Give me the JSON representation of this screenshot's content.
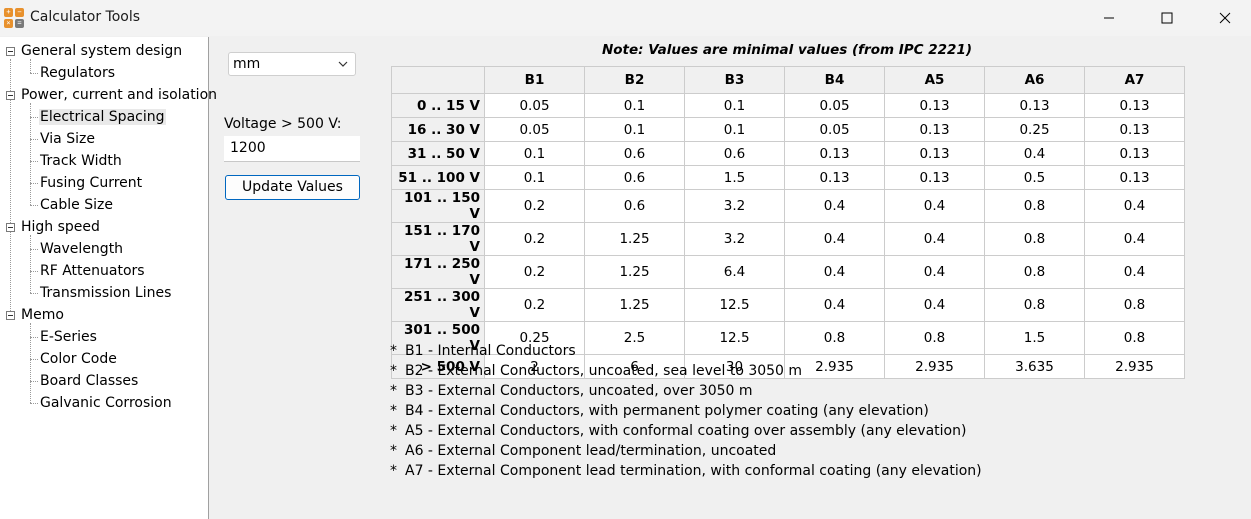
{
  "window": {
    "title": "Calculator Tools",
    "icon": "calculator-icon"
  },
  "sidebar": {
    "groups": [
      {
        "label": "General system design",
        "items": [
          "Regulators"
        ]
      },
      {
        "label": "Power, current and isolation",
        "items": [
          "Electrical Spacing",
          "Via Size",
          "Track Width",
          "Fusing Current",
          "Cable Size"
        ]
      },
      {
        "label": "High speed",
        "items": [
          "Wavelength",
          "RF Attenuators",
          "Transmission Lines"
        ]
      },
      {
        "label": "Memo",
        "items": [
          "E-Series",
          "Color Code",
          "Board Classes",
          "Galvanic Corrosion"
        ]
      }
    ],
    "selected": "Electrical Spacing"
  },
  "controls": {
    "unit_value": "mm",
    "voltage_label": "Voltage > 500 V:",
    "voltage_value": "1200",
    "update_label": "Update Values"
  },
  "table": {
    "note": "Note: Values are minimal values (from IPC 2221)",
    "columns": [
      "B1",
      "B2",
      "B3",
      "B4",
      "A5",
      "A6",
      "A7"
    ],
    "rows": [
      {
        "label": "0 .. 15 V",
        "values": [
          "0.05",
          "0.1",
          "0.1",
          "0.05",
          "0.13",
          "0.13",
          "0.13"
        ]
      },
      {
        "label": "16 .. 30 V",
        "values": [
          "0.05",
          "0.1",
          "0.1",
          "0.05",
          "0.13",
          "0.25",
          "0.13"
        ]
      },
      {
        "label": "31 .. 50 V",
        "values": [
          "0.1",
          "0.6",
          "0.6",
          "0.13",
          "0.13",
          "0.4",
          "0.13"
        ]
      },
      {
        "label": "51 .. 100 V",
        "values": [
          "0.1",
          "0.6",
          "1.5",
          "0.13",
          "0.13",
          "0.5",
          "0.13"
        ]
      },
      {
        "label": "101 .. 150 V",
        "values": [
          "0.2",
          "0.6",
          "3.2",
          "0.4",
          "0.4",
          "0.8",
          "0.4"
        ]
      },
      {
        "label": "151 .. 170 V",
        "values": [
          "0.2",
          "1.25",
          "3.2",
          "0.4",
          "0.4",
          "0.8",
          "0.4"
        ]
      },
      {
        "label": "171 .. 250 V",
        "values": [
          "0.2",
          "1.25",
          "6.4",
          "0.4",
          "0.4",
          "0.8",
          "0.4"
        ]
      },
      {
        "label": "251 .. 300 V",
        "values": [
          "0.2",
          "1.25",
          "12.5",
          "0.4",
          "0.4",
          "0.8",
          "0.8"
        ]
      },
      {
        "label": "301 .. 500 V",
        "values": [
          "0.25",
          "2.5",
          "12.5",
          "0.8",
          "0.8",
          "1.5",
          "0.8"
        ]
      },
      {
        "label": "> 500 V",
        "values": [
          "2",
          "6",
          "30",
          "2.935",
          "2.935",
          "3.635",
          "2.935"
        ]
      }
    ]
  },
  "legend": [
    {
      "star": "*",
      "text": "B1 - Internal Conductors"
    },
    {
      "star": "*",
      "text": "B2 - External Conductors, uncoated, sea level to 3050 m"
    },
    {
      "star": "*",
      "text": "B3 - External Conductors, uncoated, over 3050 m"
    },
    {
      "star": "*",
      "text": "B4 - External Conductors, with permanent polymer coating (any elevation)"
    },
    {
      "star": "*",
      "text": "A5 - External Conductors, with conformal coating over assembly (any elevation)"
    },
    {
      "star": "*",
      "text": "A6 - External Component lead/termination, uncoated"
    },
    {
      "star": "*",
      "text": "A7 - External Component lead termination, with conformal coating (any elevation)"
    }
  ]
}
